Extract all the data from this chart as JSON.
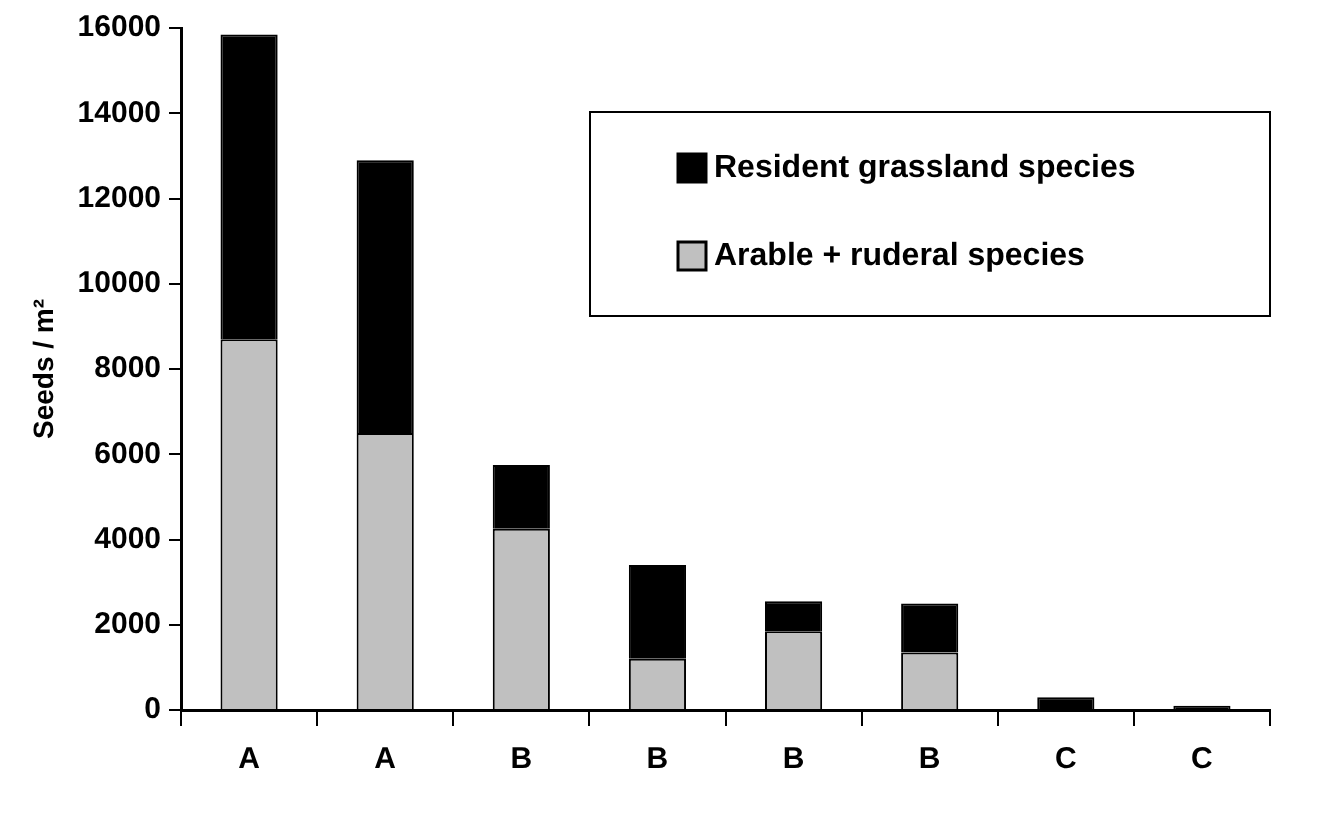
{
  "chart_data": {
    "type": "bar",
    "stacked": true,
    "ylabel": "Seeds / m²",
    "categories": [
      "A",
      "A",
      "B",
      "B",
      "B",
      "B",
      "C",
      "C"
    ],
    "series": [
      {
        "name": "Arable + ruderal species",
        "color": "#c0c0c0",
        "values": [
          8700,
          6500,
          4250,
          1200,
          1850,
          1350,
          0,
          0
        ]
      },
      {
        "name": "Resident grassland species",
        "color": "#000000",
        "values": [
          7150,
          6400,
          1500,
          2200,
          700,
          1150,
          300,
          100
        ]
      }
    ],
    "ylim": [
      0,
      16000
    ],
    "yticks": [
      0,
      2000,
      4000,
      6000,
      8000,
      10000,
      12000,
      14000,
      16000
    ],
    "grid": false,
    "legend": "top right"
  }
}
